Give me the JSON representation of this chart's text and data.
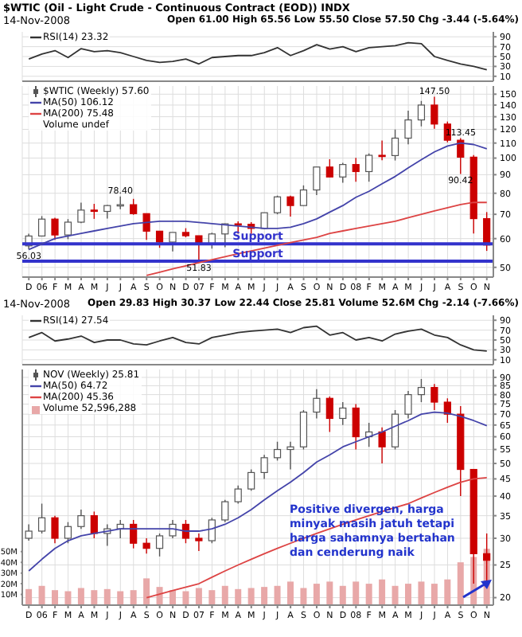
{
  "chart_data": [
    {
      "type": "line",
      "title": "$WTIC (Oil - Light Crude - Continuous Contract (EOD)) INDX",
      "subtitle": "14-Nov-2008",
      "annotations": [
        "Open 61.00 High 65.56 Low 55.50 Close 57.50 Chg -3.44 (-5.64%)"
      ],
      "categories": [
        "D",
        "06",
        "F",
        "M",
        "A",
        "M",
        "J",
        "J",
        "A",
        "S",
        "O",
        "N",
        "D",
        "07",
        "F",
        "M",
        "A",
        "M",
        "J",
        "J",
        "A",
        "S",
        "O",
        "N",
        "D",
        "08",
        "F",
        "M",
        "A",
        "M",
        "J",
        "J",
        "A",
        "S",
        "O",
        "N"
      ],
      "tick_labels": "y",
      "ylim": [
        0,
        100
      ],
      "yticks": [
        10,
        30,
        50,
        70,
        90
      ],
      "grid": true,
      "legend": "top left",
      "series": [
        {
          "name": "RSI(14) 23.32",
          "color": "#333333",
          "values": [
            45,
            55,
            62,
            48,
            66,
            60,
            62,
            58,
            50,
            42,
            38,
            40,
            45,
            35,
            48,
            50,
            52,
            52,
            58,
            68,
            52,
            62,
            74,
            65,
            70,
            60,
            68,
            70,
            72,
            78,
            76,
            50,
            42,
            35,
            30,
            23.32
          ]
        }
      ]
    },
    {
      "type": "candlestick",
      "annotations": [
        "Volume undef",
        {
          "text": "56.03",
          "x": "D",
          "y": 56.03
        },
        {
          "text": "78.40",
          "y": 78.4
        },
        {
          "text": "51.83",
          "x": "07",
          "y": 51.83
        },
        {
          "text": "147.50",
          "y": 147.5
        },
        {
          "text": "113.45",
          "y": 113.45
        },
        {
          "text": "90.42",
          "y": 90.42
        }
      ],
      "categories": [
        "D",
        "06",
        "F",
        "M",
        "A",
        "M",
        "J",
        "J",
        "A",
        "S",
        "O",
        "N",
        "D",
        "07",
        "F",
        "M",
        "A",
        "M",
        "J",
        "J",
        "A",
        "S",
        "O",
        "N",
        "D",
        "08",
        "F",
        "M",
        "A",
        "M",
        "J",
        "J",
        "A",
        "S",
        "O",
        "N"
      ],
      "log": "y",
      "ylim": [
        47,
        158
      ],
      "yticks": [
        50,
        60,
        70,
        80,
        90,
        100,
        110,
        120,
        130,
        140,
        150
      ],
      "grid": true,
      "legend": "top left",
      "ref_lines": [
        {
          "axis": "y",
          "value": 58,
          "label": "Support",
          "color": "#3333cc"
        },
        {
          "axis": "y",
          "value": 52,
          "label": "Support",
          "color": "#3333cc"
        }
      ],
      "series": [
        {
          "name": "$WTIC (Weekly) 57.60",
          "color": "#555555",
          "ohlc": [
            [
              57.3,
              61.9,
              56.03,
              61.0
            ],
            [
              61.0,
              69.2,
              60.8,
              67.9
            ],
            [
              67.9,
              68.5,
              59.5,
              61.4
            ],
            [
              61.4,
              67.9,
              59.8,
              66.6
            ],
            [
              66.6,
              75.4,
              66.2,
              71.9
            ],
            [
              71.9,
              74.8,
              68.0,
              71.3
            ],
            [
              71.3,
              74.2,
              68.1,
              74.0
            ],
            [
              74.0,
              78.4,
              72.3,
              74.4
            ],
            [
              74.4,
              77.2,
              69.8,
              70.3
            ],
            [
              70.3,
              70.3,
              59.5,
              62.9
            ],
            [
              62.9,
              62.9,
              56.6,
              58.7
            ],
            [
              58.7,
              62.4,
              55.3,
              62.4
            ],
            [
              62.4,
              64.1,
              60.5,
              61.1
            ],
            [
              61.1,
              61.1,
              51.83,
              58.1
            ],
            [
              58.1,
              62.3,
              56.3,
              61.8
            ],
            [
              61.8,
              66.0,
              56.8,
              65.9
            ],
            [
              65.9,
              66.9,
              61.9,
              65.7
            ],
            [
              65.7,
              66.6,
              61.5,
              64.0
            ],
            [
              64.0,
              70.7,
              64.0,
              70.7
            ],
            [
              70.7,
              78.8,
              70.0,
              78.2
            ],
            [
              78.2,
              78.8,
              69.0,
              74.0
            ],
            [
              74.0,
              84.1,
              73.9,
              81.7
            ],
            [
              81.7,
              94.6,
              79.1,
              94.5
            ],
            [
              94.5,
              99.3,
              88.6,
              88.7
            ],
            [
              88.7,
              97.0,
              85.5,
              96.0
            ],
            [
              96.0,
              100.1,
              86.1,
              91.8
            ],
            [
              91.8,
              103.0,
              86.1,
              101.8
            ],
            [
              101.8,
              111.8,
              98.7,
              101.6
            ],
            [
              101.6,
              119.9,
              98.5,
              113.5
            ],
            [
              113.5,
              135.1,
              109.1,
              127.4
            ],
            [
              127.4,
              143.7,
              122.3,
              140.0
            ],
            [
              140.0,
              147.5,
              120.4,
              124.1
            ],
            [
              124.1,
              126.1,
              110.5,
              112.0
            ],
            [
              112.0,
              113.45,
              90.42,
              100.6
            ],
            [
              100.6,
              102.0,
              62.0,
              68.1
            ],
            [
              68.1,
              71.0,
              55.5,
              57.6
            ]
          ],
          "colors": [
            "#555555",
            "#555555",
            "#cc0000",
            "#555555",
            "#555555",
            "#cc0000",
            "#555555",
            "#555555",
            "#cc0000",
            "#cc0000",
            "#cc0000",
            "#555555",
            "#cc0000",
            "#cc0000",
            "#555555",
            "#555555",
            "#cc0000",
            "#cc0000",
            "#555555",
            "#555555",
            "#cc0000",
            "#555555",
            "#555555",
            "#cc0000",
            "#555555",
            "#cc0000",
            "#555555",
            "#cc0000",
            "#555555",
            "#555555",
            "#555555",
            "#cc0000",
            "#cc0000",
            "#cc0000",
            "#cc0000",
            "#cc0000"
          ]
        },
        {
          "type": "line",
          "name": "MA(50) 106.12",
          "color": "#4444aa",
          "values": [
            56,
            58,
            60,
            61,
            62,
            63,
            64,
            65,
            66,
            66.5,
            67,
            67,
            67,
            66.5,
            66,
            65.5,
            65,
            64.5,
            64,
            64,
            64.5,
            66,
            68,
            71,
            74,
            78,
            81,
            85,
            89,
            94,
            99,
            104,
            108,
            110,
            109,
            106.12
          ]
        },
        {
          "type": "line",
          "name": "MA(200) 75.48",
          "color": "#dd4444",
          "values": [
            null,
            null,
            null,
            null,
            null,
            null,
            null,
            null,
            null,
            47.5,
            48.5,
            49.5,
            50.5,
            51.5,
            52.5,
            53.5,
            54.5,
            55.5,
            56.5,
            57.5,
            58.5,
            59.5,
            60.5,
            62,
            63,
            64,
            65,
            66,
            67,
            68.5,
            70,
            71.5,
            73,
            74.5,
            75.5,
            75.48
          ]
        }
      ]
    },
    {
      "type": "line",
      "subtitle": "14-Nov-2008",
      "annotations": [
        "Open 29.83 High 30.37 Low 22.44 Close 25.81 Volume 52.6M Chg -2.14 (-7.66%)"
      ],
      "categories": [
        "D",
        "06",
        "F",
        "M",
        "A",
        "M",
        "J",
        "J",
        "A",
        "S",
        "O",
        "N",
        "D",
        "07",
        "F",
        "M",
        "A",
        "M",
        "J",
        "J",
        "A",
        "S",
        "O",
        "N",
        "D",
        "08",
        "F",
        "M",
        "A",
        "M",
        "J",
        "J",
        "A",
        "S",
        "O",
        "N"
      ],
      "tick_labels": "y",
      "ylim": [
        0,
        100
      ],
      "yticks": [
        10,
        30,
        50,
        70,
        90
      ],
      "grid": true,
      "legend": "top left",
      "series": [
        {
          "name": "RSI(14) 27.54",
          "color": "#333333",
          "values": [
            55,
            65,
            48,
            52,
            58,
            45,
            50,
            50,
            42,
            40,
            48,
            55,
            45,
            42,
            55,
            60,
            65,
            68,
            70,
            72,
            65,
            75,
            78,
            60,
            65,
            50,
            55,
            48,
            62,
            68,
            72,
            60,
            55,
            40,
            30,
            27.54
          ]
        }
      ]
    },
    {
      "type": "candlestick",
      "annotations": [
        "Positive divergen,  harga minyak masih jatuh tetapi harga sahamnya bertahan dan cenderung naik"
      ],
      "categories": [
        "D",
        "06",
        "F",
        "M",
        "A",
        "M",
        "J",
        "J",
        "A",
        "S",
        "O",
        "N",
        "D",
        "07",
        "F",
        "M",
        "A",
        "M",
        "J",
        "J",
        "A",
        "S",
        "O",
        "N",
        "D",
        "08",
        "F",
        "M",
        "A",
        "M",
        "J",
        "J",
        "A",
        "S",
        "O",
        "N"
      ],
      "log": "y",
      "ylim": [
        19,
        95
      ],
      "yticks": [
        20,
        25,
        30,
        35,
        40,
        45,
        50,
        55,
        60,
        65,
        70,
        75,
        80,
        85,
        90
      ],
      "y2lim": [
        0,
        220
      ],
      "y2ticks": [
        {
          "value": 10,
          "label": "10M"
        },
        {
          "value": 20,
          "label": "20M"
        },
        {
          "value": 30,
          "label": "30M"
        },
        {
          "value": 40,
          "label": "40M"
        },
        {
          "value": 50,
          "label": "50M"
        }
      ],
      "grid": true,
      "legend": "top left",
      "series": [
        {
          "name": "NOV (Weekly) 25.81",
          "color": "#555555",
          "ohlc": [
            [
              30,
              33,
              29.5,
              31.5
            ],
            [
              31.5,
              38,
              31,
              34.5
            ],
            [
              34.5,
              35,
              29,
              30
            ],
            [
              30,
              33.5,
              29,
              32.5
            ],
            [
              32.5,
              36.5,
              32,
              35
            ],
            [
              35,
              36,
              30,
              31
            ],
            [
              31,
              33,
              28.5,
              32
            ],
            [
              32,
              34,
              30,
              33
            ],
            [
              33,
              34,
              28,
              29
            ],
            [
              29,
              30,
              27,
              28
            ],
            [
              28,
              31,
              26.5,
              30.5
            ],
            [
              30.5,
              34,
              30,
              33
            ],
            [
              33,
              34,
              29,
              30
            ],
            [
              30,
              31,
              27.5,
              29.5
            ],
            [
              29.5,
              34.5,
              29,
              34
            ],
            [
              34,
              39,
              33.5,
              38.5
            ],
            [
              38.5,
              43,
              38,
              42
            ],
            [
              42,
              48,
              41.5,
              47
            ],
            [
              47,
              53,
              45,
              52
            ],
            [
              52,
              58,
              51,
              55
            ],
            [
              55,
              58,
              48,
              56
            ],
            [
              56,
              72,
              55,
              71
            ],
            [
              71,
              83,
              68,
              78
            ],
            [
              78,
              79,
              62,
              68
            ],
            [
              68,
              76,
              65,
              73
            ],
            [
              73,
              75,
              55,
              60
            ],
            [
              60,
              66,
              56,
              62
            ],
            [
              62,
              64,
              50,
              56
            ],
            [
              56,
              72,
              55,
              70
            ],
            [
              70,
              82,
              68,
              80
            ],
            [
              80,
              89,
              76,
              84
            ],
            [
              84,
              86,
              72,
              76
            ],
            [
              76,
              78,
              66,
              70
            ],
            [
              70,
              74,
              40,
              48
            ],
            [
              48,
              48,
              22,
              27
            ],
            [
              27,
              31,
              22.44,
              25.81
            ]
          ],
          "colors": [
            "#555555",
            "#555555",
            "#cc0000",
            "#555555",
            "#555555",
            "#cc0000",
            "#555555",
            "#555555",
            "#cc0000",
            "#cc0000",
            "#555555",
            "#555555",
            "#cc0000",
            "#cc0000",
            "#555555",
            "#555555",
            "#555555",
            "#555555",
            "#555555",
            "#555555",
            "#555555",
            "#555555",
            "#555555",
            "#cc0000",
            "#555555",
            "#cc0000",
            "#555555",
            "#cc0000",
            "#555555",
            "#555555",
            "#555555",
            "#cc0000",
            "#cc0000",
            "#cc0000",
            "#cc0000",
            "#cc0000"
          ]
        },
        {
          "type": "line",
          "name": "MA(50) 64.72",
          "color": "#4444aa",
          "values": [
            24,
            26,
            28,
            29.5,
            30.5,
            31,
            31.5,
            32,
            32,
            32,
            32,
            32,
            31.5,
            31.5,
            32,
            33,
            34.5,
            36.5,
            39,
            41.5,
            44,
            47,
            50.5,
            53,
            56,
            58,
            60,
            62,
            64.5,
            67,
            70,
            71,
            70.5,
            69,
            67,
            64.72
          ]
        },
        {
          "type": "line",
          "name": "MA(200) 45.36",
          "color": "#dd4444",
          "values": [
            null,
            null,
            null,
            null,
            null,
            null,
            null,
            null,
            null,
            20,
            20.5,
            21,
            21.5,
            22,
            23,
            24,
            25,
            26,
            27,
            28,
            29,
            30,
            31,
            32,
            33,
            34,
            35,
            36,
            37,
            38,
            39.5,
            41,
            42.5,
            44,
            45,
            45.36
          ]
        },
        {
          "type": "bar",
          "axis": "y2",
          "name": "Volume 52,596,288",
          "color": "#e8a8a8",
          "values": [
            15,
            18,
            14,
            13,
            16,
            14,
            15,
            13,
            14,
            25,
            17,
            14,
            13,
            16,
            14,
            18,
            15,
            16,
            17,
            18,
            22,
            16,
            20,
            22,
            18,
            22,
            20,
            24,
            18,
            20,
            22,
            20,
            24,
            40,
            45,
            52.6
          ]
        }
      ]
    }
  ]
}
